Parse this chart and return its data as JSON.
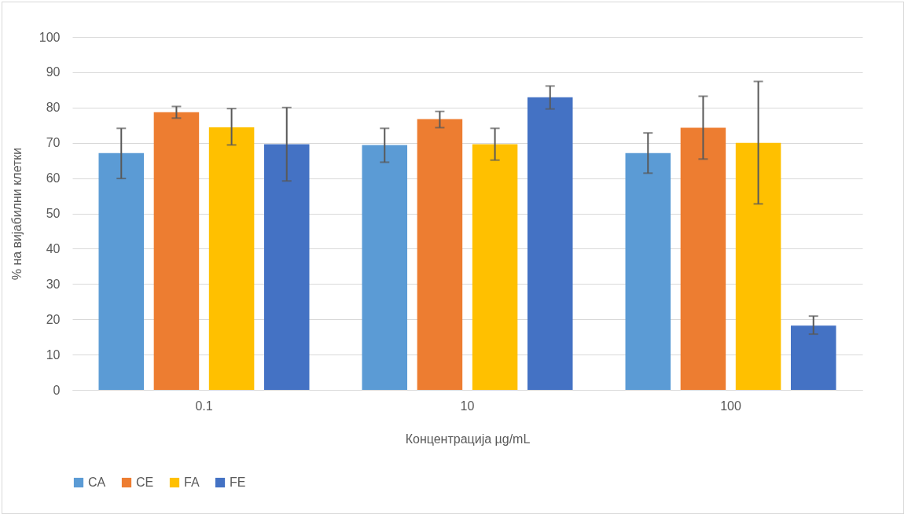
{
  "chart_data": {
    "type": "bar",
    "xlabel": "Концентрација µg/mL",
    "ylabel": "% на вијабилни клетки",
    "categories": [
      "0.1",
      "10",
      "100"
    ],
    "series": [
      {
        "name": "CA",
        "color": "#5b9bd5",
        "values": [
          67.1,
          69.4,
          67.1
        ],
        "errors": [
          [
            59.9,
            74.1
          ],
          [
            64.5,
            74.1
          ],
          [
            61.4,
            72.8
          ]
        ]
      },
      {
        "name": "CE",
        "color": "#ed7d31",
        "values": [
          78.7,
          76.7,
          74.3
        ],
        "errors": [
          [
            77.0,
            80.3
          ],
          [
            74.3,
            78.9
          ],
          [
            65.4,
            83.2
          ]
        ]
      },
      {
        "name": "FA",
        "color": "#ffc000",
        "values": [
          74.4,
          69.6,
          70.0
        ],
        "errors": [
          [
            69.4,
            79.7
          ],
          [
            65.1,
            74.1
          ],
          [
            52.7,
            87.4
          ]
        ]
      },
      {
        "name": "FE",
        "color": "#4472c4",
        "values": [
          69.6,
          82.9,
          18.2
        ],
        "errors": [
          [
            59.2,
            80.0
          ],
          [
            79.6,
            86.1
          ],
          [
            15.8,
            20.9
          ]
        ]
      }
    ],
    "ylim": [
      0,
      100
    ],
    "yticks": [
      0,
      10,
      20,
      30,
      40,
      50,
      60,
      70,
      80,
      90,
      100
    ],
    "grid": "y",
    "legend": "bottom"
  }
}
